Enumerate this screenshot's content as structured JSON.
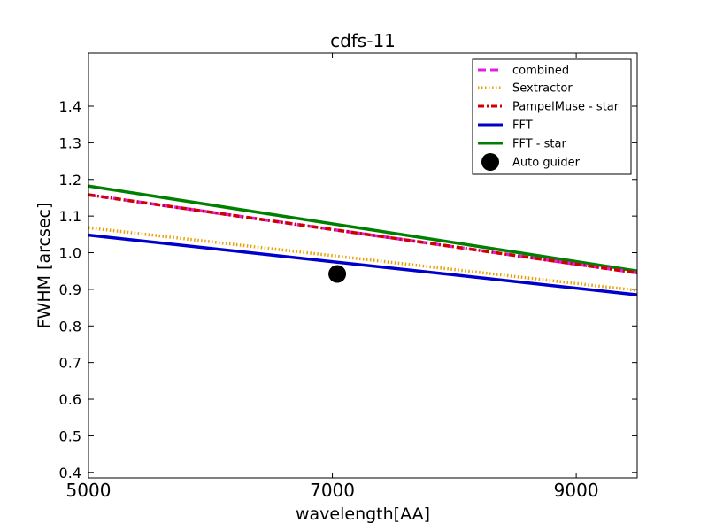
{
  "chart_data": {
    "type": "line",
    "title": "cdfs-11",
    "xlabel": "wavelength[AA]",
    "ylabel": "FWHM [arcsec]",
    "xlim": [
      5000,
      9500
    ],
    "ylim": [
      0.385,
      1.545
    ],
    "xticks": [
      5000,
      7000,
      9000
    ],
    "yticks": [
      0.4,
      0.5,
      0.6,
      0.7,
      0.8,
      0.9,
      1.0,
      1.1,
      1.2,
      1.3,
      1.4
    ],
    "ytick_labels": [
      "0.4",
      "0.5",
      "0.6",
      "0.7",
      "0.8",
      "0.9",
      "1.0",
      "1.1",
      "1.2",
      "1.3",
      "1.4"
    ],
    "grid": false,
    "legend_position": "top-right",
    "series": [
      {
        "name": "combined",
        "style": "dashed",
        "color": "#e020e0",
        "x": [
          5000,
          9500
        ],
        "y": [
          1.158,
          0.945
        ]
      },
      {
        "name": "Sextractor",
        "style": "dotted",
        "color": "#e8a000",
        "x": [
          5000,
          9500
        ],
        "y": [
          1.068,
          0.897
        ]
      },
      {
        "name": "PampelMuse - star",
        "style": "dashdot",
        "color": "#d00000",
        "x": [
          5000,
          9500
        ],
        "y": [
          1.158,
          0.945
        ]
      },
      {
        "name": "FFT",
        "style": "solid",
        "color": "#0000cc",
        "x": [
          5000,
          9500
        ],
        "y": [
          1.048,
          0.885
        ]
      },
      {
        "name": "FFT - star",
        "style": "solid",
        "color": "#008000",
        "x": [
          5000,
          9500
        ],
        "y": [
          1.182,
          0.95
        ]
      },
      {
        "name": "Auto guider",
        "style": "marker",
        "color": "#000000",
        "x": [
          7040
        ],
        "y": [
          0.942
        ]
      }
    ]
  }
}
